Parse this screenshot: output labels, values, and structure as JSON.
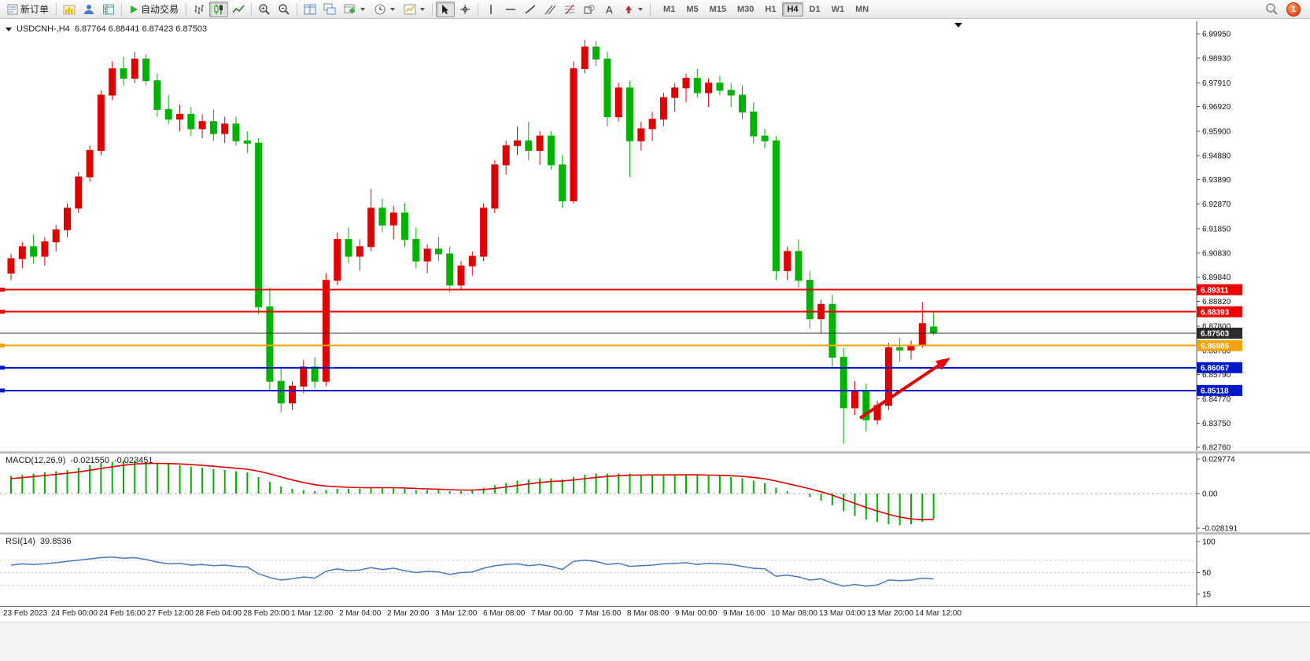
{
  "toolbar": {
    "new_order": "新订单",
    "autotrading": "自动交易",
    "timeframes": [
      "M1",
      "M5",
      "M15",
      "M30",
      "H1",
      "H4",
      "D1",
      "W1",
      "MN"
    ],
    "active_timeframe": "H4",
    "notification_count": "1"
  },
  "chart": {
    "symbol_period": "USDCNH-,H4",
    "ohlc_text": "6.87764 6.88441 6.87423 6.87503",
    "price_axis_labels": [
      "6.99950",
      "6.98930",
      "6.97910",
      "6.96920",
      "6.95900",
      "6.94880",
      "6.93890",
      "6.92870",
      "6.91850",
      "6.90830",
      "6.89840",
      "6.88820",
      "6.87800",
      "6.86780",
      "6.85790",
      "6.84770",
      "6.83750",
      "6.82760"
    ],
    "levels": [
      {
        "price": 6.89311,
        "label": "6.89311",
        "color": "#ee0000",
        "width": 2
      },
      {
        "price": 6.88393,
        "label": "6.88393",
        "color": "#ee0000",
        "width": 2
      },
      {
        "price": 6.87503,
        "label": "6.87503",
        "color": "#2b2b2b",
        "width": 1
      },
      {
        "price": 6.86985,
        "label": "6.86985",
        "color": "#f5a300",
        "width": 2
      },
      {
        "price": 6.86067,
        "label": "6.86067",
        "color": "#0018cc",
        "width": 2
      },
      {
        "price": 6.85118,
        "label": "6.85118",
        "color": "#0018cc",
        "width": 2
      }
    ],
    "time_axis_labels": [
      "23 Feb 2023",
      "24 Feb 00:00",
      "24 Feb 16:00",
      "27 Feb 12:00",
      "28 Feb 04:00",
      "28 Feb 20:00",
      "1 Mar 12:00",
      "2 Mar 04:00",
      "2 Mar 20:00",
      "3 Mar 12:00",
      "6 Mar 08:00",
      "7 Mar 00:00",
      "7 Mar 16:00",
      "8 Mar 08:00",
      "9 Mar 00:00",
      "9 Mar 16:00",
      "10 Mar 08:00",
      "13 Mar 04:00",
      "13 Mar 20:00",
      "14 Mar 12:00"
    ]
  },
  "macd": {
    "name": "MACD(12,26,9)",
    "value": "-0.021550",
    "signal_value": "-0.023451",
    "axis_labels": [
      "0.029774",
      "0.00",
      "-0.028191"
    ]
  },
  "rsi": {
    "name": "RSI(14)",
    "value": "39.8536",
    "axis_labels": [
      "100",
      "50",
      "15"
    ]
  },
  "chart_data": {
    "type": "candlestick",
    "symbol": "USDCNH-",
    "timeframe": "H4",
    "up_color": "#e00000",
    "down_color": "#00b300",
    "signal_color": "#e00000",
    "rsi_color": "#4878c0",
    "price_range": [
      6.8276,
      6.9995
    ],
    "candles": [
      [
        6.9,
        6.908,
        6.897,
        6.906
      ],
      [
        6.906,
        6.913,
        6.902,
        6.911
      ],
      [
        6.911,
        6.916,
        6.904,
        6.907
      ],
      [
        6.907,
        6.915,
        6.903,
        6.913
      ],
      [
        6.913,
        6.92,
        6.909,
        6.918
      ],
      [
        6.918,
        6.929,
        6.915,
        6.927
      ],
      [
        6.927,
        6.942,
        6.925,
        6.94
      ],
      [
        6.94,
        6.953,
        6.938,
        6.951
      ],
      [
        6.951,
        6.976,
        6.949,
        6.974
      ],
      [
        6.974,
        6.988,
        6.972,
        6.985
      ],
      [
        6.985,
        6.99,
        6.978,
        6.981
      ],
      [
        6.981,
        6.992,
        6.979,
        6.989
      ],
      [
        6.989,
        6.991,
        6.978,
        6.98
      ],
      [
        6.98,
        6.983,
        6.965,
        6.968
      ],
      [
        6.968,
        6.974,
        6.962,
        6.964
      ],
      [
        6.964,
        6.97,
        6.959,
        6.966
      ],
      [
        6.966,
        6.969,
        6.957,
        6.96
      ],
      [
        6.96,
        6.966,
        6.956,
        6.963
      ],
      [
        6.963,
        6.968,
        6.955,
        6.958
      ],
      [
        6.958,
        6.965,
        6.954,
        6.962
      ],
      [
        6.962,
        6.965,
        6.953,
        6.955
      ],
      [
        6.955,
        6.959,
        6.95,
        6.954
      ],
      [
        6.954,
        6.956,
        6.883,
        6.886
      ],
      [
        6.886,
        6.894,
        6.851,
        6.855
      ],
      [
        6.855,
        6.861,
        6.842,
        6.846
      ],
      [
        6.846,
        6.855,
        6.843,
        6.853
      ],
      [
        6.853,
        6.864,
        6.85,
        6.861
      ],
      [
        6.861,
        6.865,
        6.852,
        6.855
      ],
      [
        6.855,
        6.9,
        6.853,
        6.897
      ],
      [
        6.897,
        6.917,
        6.895,
        6.914
      ],
      [
        6.914,
        6.919,
        6.904,
        6.907
      ],
      [
        6.907,
        6.914,
        6.901,
        6.911
      ],
      [
        6.911,
        6.935,
        6.909,
        6.927
      ],
      [
        6.927,
        6.931,
        6.917,
        6.92
      ],
      [
        6.92,
        6.928,
        6.914,
        6.925
      ],
      [
        6.925,
        6.929,
        6.911,
        6.914
      ],
      [
        6.914,
        6.919,
        6.902,
        6.905
      ],
      [
        6.905,
        6.912,
        6.9,
        6.91
      ],
      [
        6.91,
        6.915,
        6.905,
        6.908
      ],
      [
        6.908,
        6.911,
        6.892,
        6.895
      ],
      [
        6.895,
        6.905,
        6.893,
        6.903
      ],
      [
        6.903,
        6.909,
        6.899,
        6.907
      ],
      [
        6.907,
        6.929,
        6.905,
        6.927
      ],
      [
        6.927,
        6.947,
        6.925,
        6.945
      ],
      [
        6.945,
        6.955,
        6.941,
        6.953
      ],
      [
        6.953,
        6.961,
        6.949,
        6.955
      ],
      [
        6.955,
        6.963,
        6.947,
        6.951
      ],
      [
        6.951,
        6.959,
        6.945,
        6.957
      ],
      [
        6.957,
        6.959,
        6.943,
        6.945
      ],
      [
        6.945,
        6.949,
        6.927,
        6.93
      ],
      [
        6.93,
        6.988,
        6.929,
        6.985
      ],
      [
        6.985,
        6.997,
        6.983,
        6.994
      ],
      [
        6.994,
        6.9965,
        6.986,
        6.989
      ],
      [
        6.989,
        6.992,
        6.961,
        6.965
      ],
      [
        6.965,
        6.979,
        6.963,
        6.977
      ],
      [
        6.977,
        6.98,
        6.94,
        6.955
      ],
      [
        6.955,
        6.963,
        6.951,
        6.96
      ],
      [
        6.96,
        6.967,
        6.955,
        6.964
      ],
      [
        6.964,
        6.975,
        6.961,
        6.973
      ],
      [
        6.973,
        6.979,
        6.967,
        6.977
      ],
      [
        6.977,
        6.983,
        6.971,
        6.981
      ],
      [
        6.981,
        6.985,
        6.973,
        6.975
      ],
      [
        6.975,
        6.981,
        6.969,
        6.979
      ],
      [
        6.979,
        6.982,
        6.974,
        6.976
      ],
      [
        6.976,
        6.979,
        6.969,
        6.974
      ],
      [
        6.974,
        6.978,
        6.964,
        6.967
      ],
      [
        6.967,
        6.971,
        6.954,
        6.957
      ],
      [
        6.957,
        6.96,
        6.952,
        6.955
      ],
      [
        6.955,
        6.957,
        6.897,
        6.901
      ],
      [
        6.901,
        6.911,
        6.897,
        6.909
      ],
      [
        6.909,
        6.914,
        6.894,
        6.897
      ],
      [
        6.897,
        6.901,
        6.877,
        6.881
      ],
      [
        6.881,
        6.889,
        6.875,
        6.887
      ],
      [
        6.887,
        6.891,
        6.861,
        6.865
      ],
      [
        6.865,
        6.869,
        6.829,
        6.844
      ],
      [
        6.844,
        6.855,
        6.841,
        6.851
      ],
      [
        6.851,
        6.854,
        6.834,
        6.839
      ],
      [
        6.839,
        6.847,
        6.837,
        6.845
      ],
      [
        6.845,
        6.871,
        6.843,
        6.869
      ],
      [
        6.869,
        6.873,
        6.863,
        6.868
      ],
      [
        6.868,
        6.872,
        6.864,
        6.87
      ],
      [
        6.87,
        6.888,
        6.869,
        6.879
      ],
      [
        6.87764,
        6.88441,
        6.87423,
        6.87503
      ]
    ],
    "macd_histogram": [
      0.015,
      0.016,
      0.017,
      0.018,
      0.019,
      0.02,
      0.022,
      0.024,
      0.026,
      0.027,
      0.028,
      0.028,
      0.027,
      0.026,
      0.025,
      0.024,
      0.023,
      0.022,
      0.021,
      0.02,
      0.019,
      0.018,
      0.014,
      0.01,
      0.006,
      0.004,
      0.003,
      0.002,
      0.003,
      0.004,
      0.004,
      0.004,
      0.005,
      0.005,
      0.005,
      0.004,
      0.003,
      0.003,
      0.003,
      0.002,
      0.002,
      0.003,
      0.005,
      0.007,
      0.009,
      0.011,
      0.012,
      0.013,
      0.013,
      0.012,
      0.014,
      0.016,
      0.017,
      0.017,
      0.017,
      0.017,
      0.016,
      0.016,
      0.016,
      0.016,
      0.016,
      0.016,
      0.015,
      0.015,
      0.014,
      0.013,
      0.011,
      0.009,
      0.005,
      0.002,
      0.0,
      -0.003,
      -0.006,
      -0.01,
      -0.015,
      -0.019,
      -0.022,
      -0.024,
      -0.026,
      -0.027,
      -0.026,
      -0.024,
      -0.0215
    ],
    "rsi_values": [
      62,
      64,
      63,
      64,
      66,
      68,
      70,
      72,
      74,
      75,
      73,
      74,
      71,
      67,
      64,
      65,
      62,
      63,
      61,
      62,
      60,
      59,
      48,
      42,
      38,
      40,
      43,
      41,
      52,
      56,
      53,
      54,
      58,
      55,
      57,
      53,
      50,
      52,
      51,
      47,
      50,
      51,
      57,
      61,
      63,
      64,
      61,
      63,
      60,
      55,
      68,
      70,
      68,
      63,
      65,
      60,
      61,
      62,
      64,
      65,
      66,
      63,
      65,
      64,
      63,
      60,
      57,
      56,
      44,
      46,
      43,
      38,
      40,
      33,
      28,
      31,
      28,
      30,
      38,
      37,
      38,
      41,
      39.85
    ]
  }
}
